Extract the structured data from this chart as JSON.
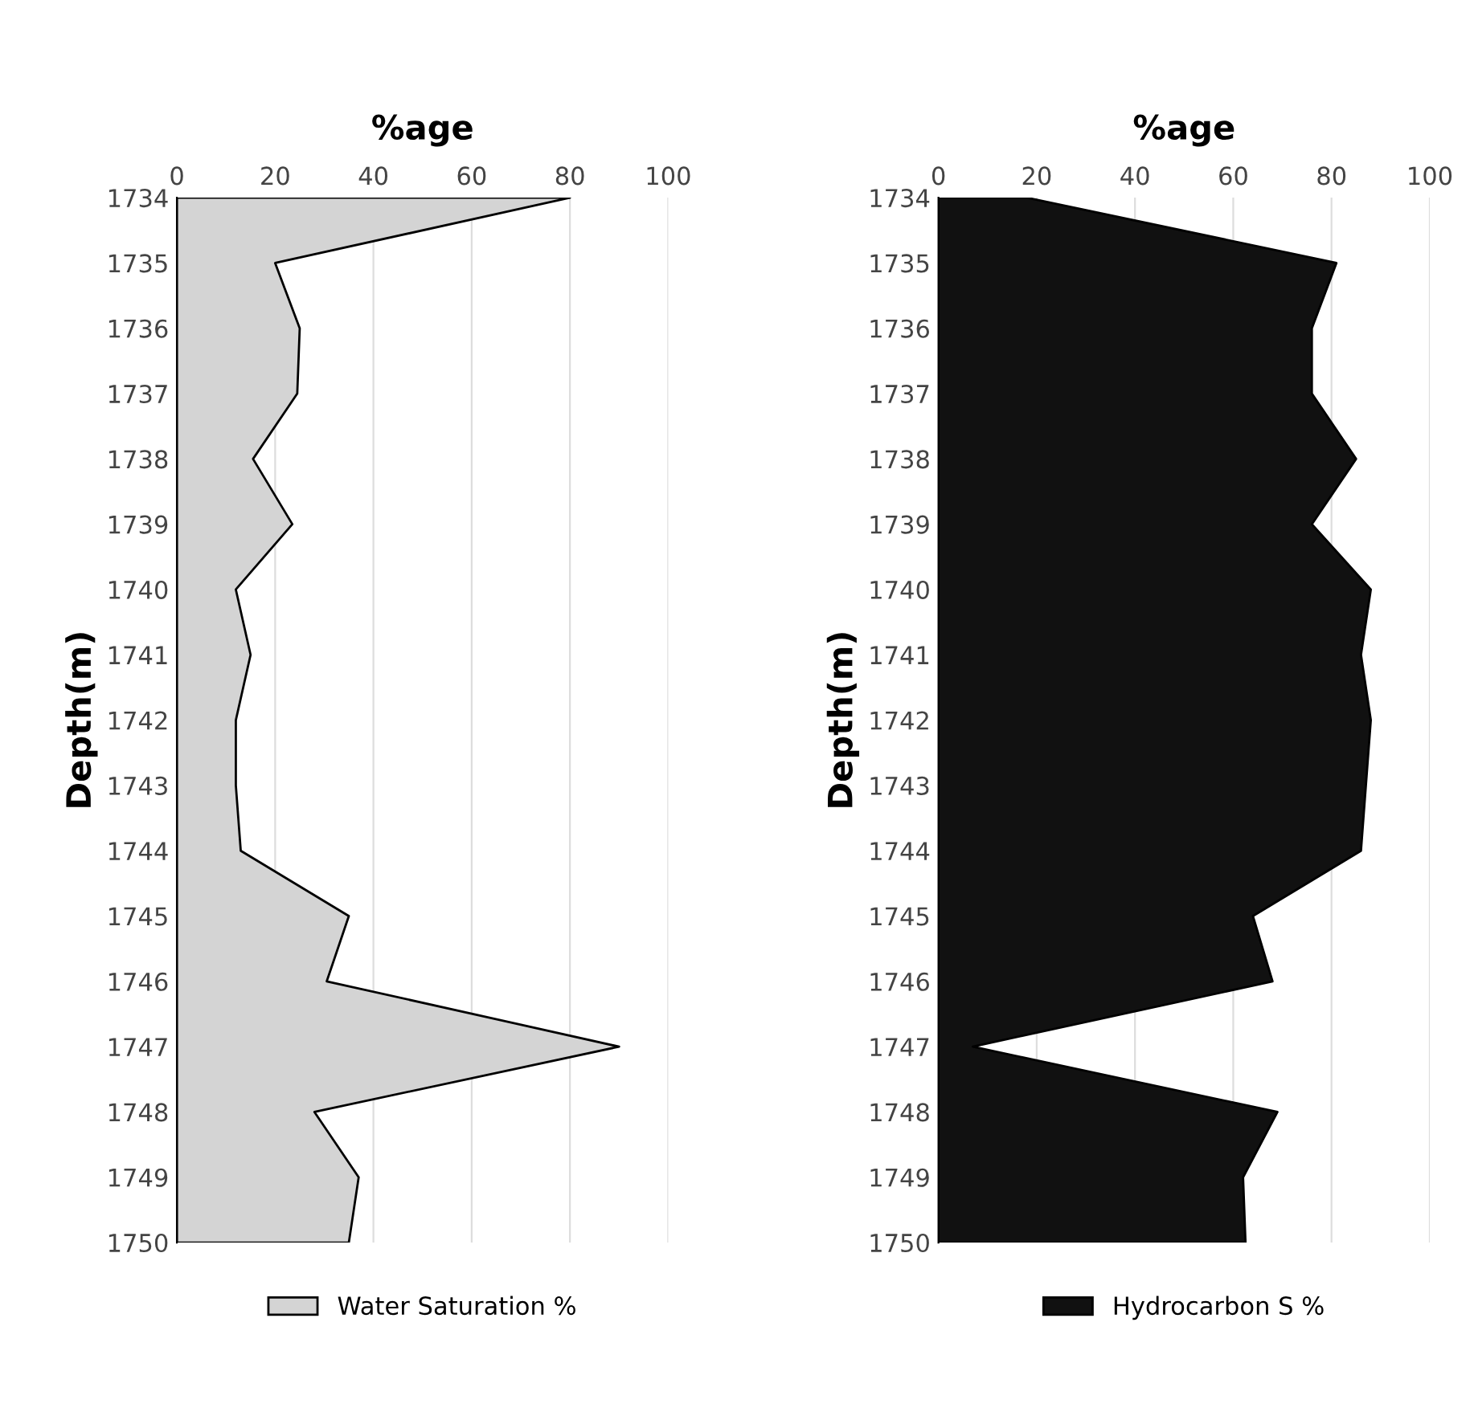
{
  "chart_data": [
    {
      "type": "area",
      "orientation": "horizontal",
      "xlabel": "%age",
      "ylabel": "Depth(m)",
      "categories": [
        "1734",
        "1735",
        "1736",
        "1737",
        "1738",
        "1739",
        "1740",
        "1741",
        "1742",
        "1743",
        "1744",
        "1745",
        "1746",
        "1747",
        "1748",
        "1749",
        "1750"
      ],
      "series": [
        {
          "name": "Water Saturation %",
          "color": "#d4d4d4",
          "values": [
            80,
            20,
            25,
            24.5,
            15.5,
            23.5,
            12,
            15,
            12,
            12,
            13,
            35,
            30.5,
            90,
            28,
            37,
            35
          ]
        }
      ],
      "xlim": [
        0,
        100
      ],
      "xticks": [
        0,
        20,
        40,
        60,
        80,
        100
      ],
      "grid": "x",
      "legend": "bottom"
    },
    {
      "type": "area",
      "orientation": "horizontal",
      "xlabel": "%age",
      "ylabel": "Depth(m)",
      "categories": [
        "1734",
        "1735",
        "1736",
        "1737",
        "1738",
        "1739",
        "1740",
        "1741",
        "1742",
        "1743",
        "1744",
        "1745",
        "1746",
        "1747",
        "1748",
        "1749",
        "1750"
      ],
      "series": [
        {
          "name": "Hydrocarbon S %",
          "color": "#111111",
          "values": [
            18,
            81,
            76,
            76,
            85,
            76,
            88,
            86,
            88,
            87,
            86,
            64,
            68,
            7,
            69,
            62,
            62.5
          ]
        }
      ],
      "xlim": [
        0,
        100
      ],
      "xticks": [
        0,
        20,
        40,
        60,
        80,
        100
      ],
      "grid": "x",
      "legend": "bottom"
    }
  ]
}
